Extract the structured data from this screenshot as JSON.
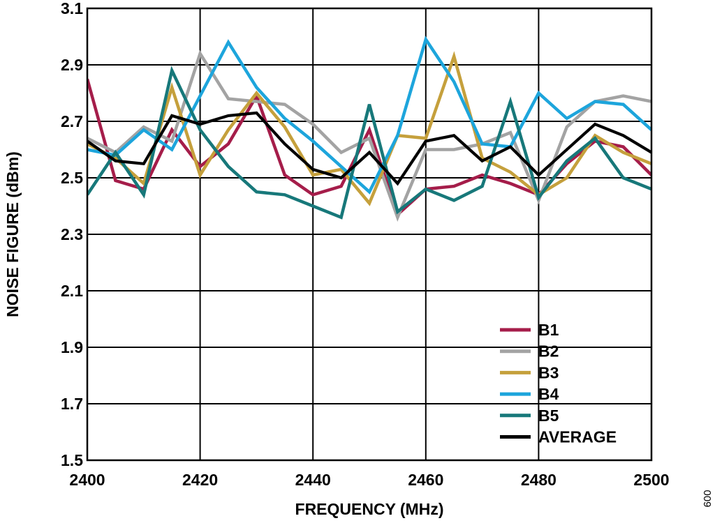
{
  "figure_id": "009",
  "chart_data": {
    "type": "line",
    "xlabel": "FREQUENCY (MHz)",
    "ylabel": "NOISE FIGURE (dBm)",
    "xlim": [
      2400,
      2500
    ],
    "ylim": [
      1.5,
      3.1
    ],
    "x_ticks": [
      "2400",
      "2420",
      "2440",
      "2460",
      "2480",
      "2500"
    ],
    "y_ticks": [
      "1.5",
      "1.7",
      "1.9",
      "2.1",
      "2.3",
      "2.5",
      "2.7",
      "2.9",
      "3.1"
    ],
    "grid": true,
    "legend_position": "bottom-right",
    "x": [
      2400,
      2405,
      2410,
      2415,
      2420,
      2425,
      2430,
      2435,
      2440,
      2445,
      2450,
      2455,
      2460,
      2465,
      2470,
      2475,
      2480,
      2485,
      2490,
      2495,
      2500
    ],
    "series": [
      {
        "name": "B1",
        "color": "#a51d4a",
        "values": [
          2.85,
          2.49,
          2.46,
          2.67,
          2.54,
          2.62,
          2.79,
          2.51,
          2.44,
          2.47,
          2.67,
          2.37,
          2.46,
          2.47,
          2.51,
          2.48,
          2.44,
          2.55,
          2.63,
          2.61,
          2.51
        ]
      },
      {
        "name": "B2",
        "color": "#a3a3a3",
        "values": [
          2.64,
          2.59,
          2.68,
          2.63,
          2.94,
          2.78,
          2.77,
          2.76,
          2.69,
          2.59,
          2.64,
          2.36,
          2.6,
          2.6,
          2.62,
          2.66,
          2.42,
          2.68,
          2.77,
          2.79,
          2.77
        ]
      },
      {
        "name": "B3",
        "color": "#c5a03c",
        "values": [
          2.62,
          2.57,
          2.48,
          2.82,
          2.51,
          2.67,
          2.8,
          2.68,
          2.51,
          2.53,
          2.41,
          2.65,
          2.64,
          2.93,
          2.57,
          2.52,
          2.44,
          2.5,
          2.65,
          2.59,
          2.55
        ]
      },
      {
        "name": "B4",
        "color": "#1da5dc",
        "values": [
          2.6,
          2.58,
          2.67,
          2.6,
          2.79,
          2.98,
          2.82,
          2.71,
          2.63,
          2.54,
          2.45,
          2.65,
          2.99,
          2.84,
          2.62,
          2.61,
          2.8,
          2.71,
          2.77,
          2.76,
          2.67
        ]
      },
      {
        "name": "B5",
        "color": "#17787a",
        "values": [
          2.44,
          2.59,
          2.44,
          2.88,
          2.67,
          2.54,
          2.45,
          2.44,
          2.4,
          2.36,
          2.76,
          2.38,
          2.46,
          2.42,
          2.47,
          2.77,
          2.43,
          2.56,
          2.64,
          2.5,
          2.46
        ]
      },
      {
        "name": "AVERAGE",
        "color": "#000000",
        "values": [
          2.63,
          2.56,
          2.55,
          2.72,
          2.69,
          2.72,
          2.73,
          2.62,
          2.53,
          2.5,
          2.59,
          2.48,
          2.63,
          2.65,
          2.56,
          2.61,
          2.51,
          2.6,
          2.69,
          2.65,
          2.59
        ]
      }
    ]
  }
}
